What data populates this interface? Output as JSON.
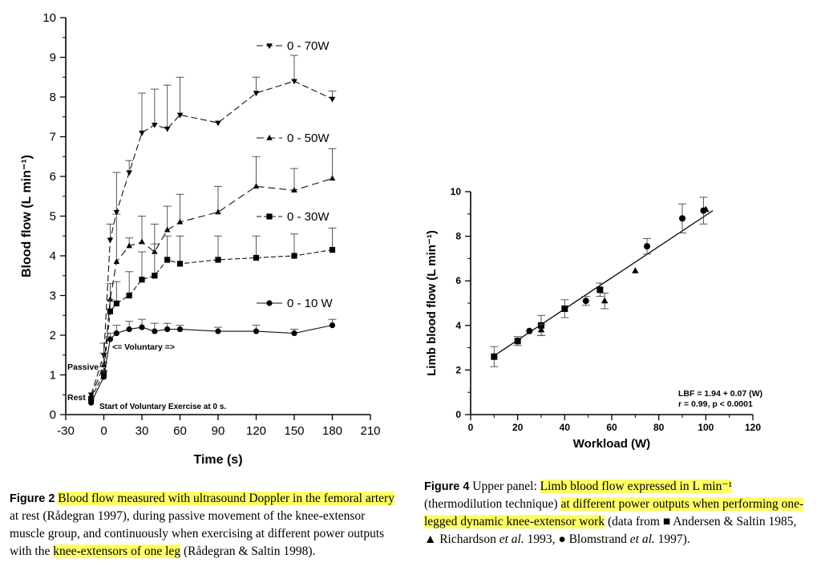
{
  "chart_data": [
    {
      "type": "line",
      "id": "figure-2",
      "xlabel": "Time (s)",
      "ylabel": "Blood flow (L min⁻¹)",
      "xlim": [
        -30,
        210
      ],
      "ylim": [
        0,
        10
      ],
      "xticks": [
        -30,
        0,
        30,
        60,
        90,
        120,
        150,
        180,
        210
      ],
      "yticks": [
        0,
        1,
        2,
        3,
        4,
        5,
        6,
        7,
        8,
        9,
        10
      ],
      "series": [
        {
          "name": "0 - 70W",
          "marker": "triangle-down",
          "x": [
            -10,
            0,
            5,
            10,
            20,
            30,
            40,
            50,
            60,
            90,
            120,
            150,
            180
          ],
          "y": [
            0.5,
            1.5,
            4.4,
            5.1,
            6.1,
            7.1,
            7.3,
            7.2,
            7.55,
            7.35,
            8.1,
            8.4,
            7.95
          ],
          "err": [
            0,
            0.3,
            0.4,
            1.0,
            0.3,
            1.0,
            0.9,
            1.1,
            0.95,
            0,
            0.4,
            0.65,
            0.2
          ]
        },
        {
          "name": "0 - 50W",
          "marker": "triangle-up",
          "x": [
            -10,
            0,
            5,
            10,
            20,
            30,
            40,
            50,
            60,
            90,
            120,
            150,
            180
          ],
          "y": [
            0.45,
            1.25,
            2.9,
            3.85,
            4.25,
            4.35,
            4.1,
            4.65,
            4.85,
            5.1,
            5.75,
            5.65,
            5.95
          ],
          "err": [
            0,
            0.3,
            0.4,
            1.2,
            0.2,
            0.65,
            0.7,
            0.6,
            0.7,
            0.65,
            0.75,
            0.55,
            0.75
          ]
        },
        {
          "name": "0 - 30W",
          "marker": "square",
          "x": [
            -10,
            0,
            5,
            10,
            20,
            30,
            40,
            50,
            60,
            90,
            120,
            150,
            180
          ],
          "y": [
            0.4,
            1.05,
            2.6,
            2.8,
            3.0,
            3.4,
            3.5,
            3.9,
            3.8,
            3.9,
            3.95,
            4.0,
            4.15
          ],
          "err": [
            0,
            0.25,
            0.3,
            0.55,
            0.6,
            0.7,
            0.8,
            0.6,
            0.7,
            0.6,
            0.55,
            0.55,
            0.55
          ]
        },
        {
          "name": "0 - 10 W",
          "marker": "circle",
          "x": [
            -10,
            0,
            5,
            10,
            20,
            30,
            40,
            50,
            60,
            90,
            120,
            150,
            180
          ],
          "y": [
            0.3,
            0.95,
            1.9,
            2.05,
            2.15,
            2.2,
            2.1,
            2.15,
            2.15,
            2.1,
            2.1,
            2.05,
            2.25
          ],
          "err": [
            0,
            0.15,
            0.15,
            0.2,
            0.2,
            0.2,
            0.2,
            0.15,
            0.1,
            0.1,
            0.15,
            0.1,
            0.15
          ]
        }
      ],
      "annotations": [
        {
          "text": "Passive",
          "x": -10,
          "y": 1.15
        },
        {
          "text": "Rest",
          "x": -10,
          "y": 0.4
        },
        {
          "text": "<= Voluntary =>",
          "x": 10,
          "y": 1.75
        },
        {
          "text": "Start of Voluntary Exercise at 0 s.",
          "x": 0,
          "y": 0.2
        }
      ]
    },
    {
      "type": "scatter",
      "id": "figure-4",
      "xlabel": "Workload (W)",
      "ylabel": "Limb blood flow (L min⁻¹)",
      "xlim": [
        0,
        120
      ],
      "ylim": [
        0,
        10
      ],
      "xticks": [
        0,
        20,
        40,
        60,
        80,
        100,
        120
      ],
      "yticks": [
        0,
        2,
        4,
        6,
        8,
        10
      ],
      "series": [
        {
          "name": "Andersen & Saltin 1985",
          "marker": "square",
          "x": [
            10,
            20,
            30,
            40,
            55
          ],
          "y": [
            2.6,
            3.3,
            4.0,
            4.75,
            5.6
          ],
          "err": [
            0.45,
            0.2,
            0.45,
            0.4,
            0.3
          ]
        },
        {
          "name": "Richardson et al. 1993",
          "marker": "triangle-up",
          "x": [
            30,
            57,
            70,
            100
          ],
          "y": [
            3.8,
            5.1,
            6.45,
            9.2
          ],
          "err": [
            0.25,
            0.35,
            0,
            0
          ]
        },
        {
          "name": "Blomstrand et al. 1997",
          "marker": "circle",
          "x": [
            25,
            49,
            75,
            90,
            99
          ],
          "y": [
            3.75,
            5.1,
            7.55,
            8.8,
            9.15
          ],
          "err": [
            0,
            0.2,
            0.35,
            0.65,
            0.6
          ]
        }
      ],
      "regression": {
        "intercept": 1.94,
        "slope": 0.07,
        "x_range": [
          10,
          103
        ]
      },
      "annotation_lines": [
        "LBF = 1.94 + 0.07 (W)",
        "r = 0.99, p < 0.0001"
      ]
    }
  ],
  "captions": {
    "fig2": {
      "label": "Figure 2",
      "hl1": "Blood flow measured with ultrasound Doppler in the femoral artery",
      "t1": " at rest (Rådegran 1997), during passive movement of the knee-extensor muscle group, and continuously when exercising at different power outputs with the ",
      "hl2": "knee-extensors of one leg",
      "t2": " (Rådegran & Saltin 1998)."
    },
    "fig4": {
      "label": "Figure 4",
      "t0": " Upper panel: ",
      "hl1": "Limb blood flow expressed in L min⁻¹",
      "t1": " (thermodilution technique) ",
      "hl2": "at different power outputs when performing one-legged dynamic knee-extensor work",
      "t2": " (data from ",
      "sym1": "■",
      "t3": " Andersen & Saltin 1985, ",
      "sym2": "▲",
      "t4": " Richardson ",
      "etal1": "et al.",
      "t5": " 1993, ",
      "sym3": "●",
      "t6": " Blomstrand ",
      "etal2": "et al.",
      "t7": " 1997)."
    }
  }
}
